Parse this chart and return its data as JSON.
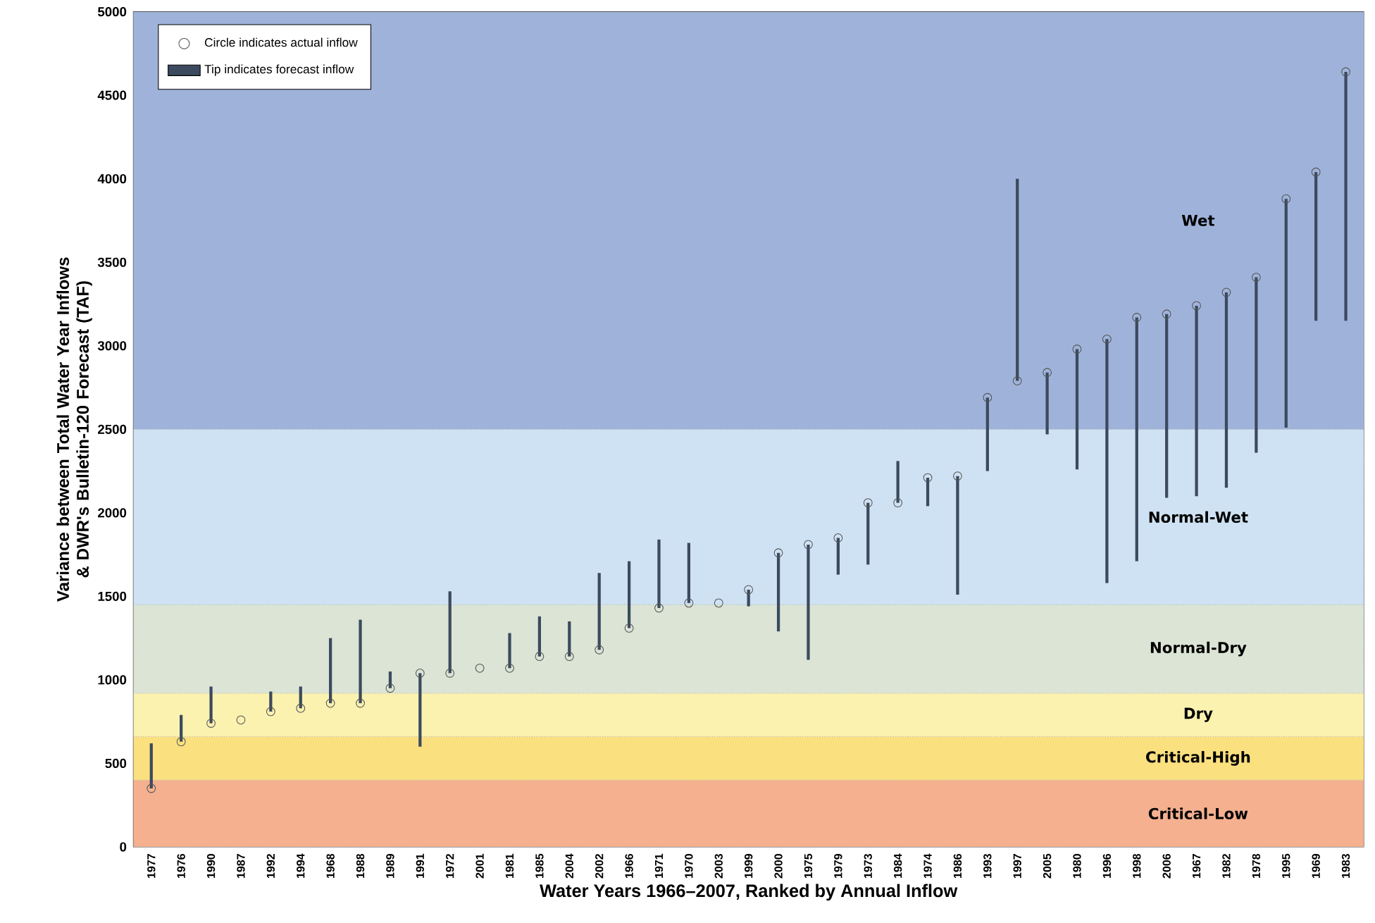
{
  "chart_data": {
    "type": "scatter",
    "xlabel": "Water Years 1966–2007, Ranked by Annual Inflow",
    "ylabel": "Variance between Total Water Year Inflows & DWR's Bulletin-120 Forecast (TAF)",
    "categories": [
      "1977",
      "1976",
      "1990",
      "1987",
      "1992",
      "1994",
      "1968",
      "1988",
      "1989",
      "1991",
      "1972",
      "2001",
      "1981",
      "1985",
      "2004",
      "2002",
      "1966",
      "1971",
      "1970",
      "2003",
      "1999",
      "2000",
      "1975",
      "1979",
      "1973",
      "1984",
      "1974",
      "1986",
      "1993",
      "1997",
      "2005",
      "1980",
      "1996",
      "1998",
      "2006",
      "1967",
      "1982",
      "1978",
      "1995",
      "1969",
      "1983"
    ],
    "series": [
      {
        "name": "Circle indicates actual inflow",
        "marker": "circle",
        "color": "#555555",
        "values": [
          350,
          630,
          740,
          760,
          810,
          830,
          860,
          860,
          950,
          1040,
          1040,
          1070,
          1070,
          1140,
          1140,
          1180,
          1310,
          1430,
          1460,
          1460,
          1540,
          1760,
          1810,
          1850,
          2060,
          2060,
          2210,
          2220,
          2690,
          2790,
          2840,
          2980,
          3040,
          3170,
          3190,
          3240,
          3320,
          3410,
          3880,
          4040,
          4640
        ]
      },
      {
        "name": "Tip indicates forecast inflow",
        "type": "bar",
        "color": "#3b4a5e",
        "base": [
          350,
          630,
          740,
          null,
          810,
          830,
          860,
          860,
          950,
          1040,
          1040,
          null,
          1070,
          1140,
          1140,
          1180,
          1310,
          1430,
          1460,
          null,
          1540,
          1760,
          1810,
          1850,
          2060,
          2060,
          2210,
          2220,
          2690,
          2790,
          2840,
          2980,
          3040,
          3170,
          3190,
          3240,
          3320,
          3410,
          3880,
          4040,
          4640
        ],
        "values": [
          270,
          160,
          220,
          null,
          120,
          130,
          390,
          500,
          100,
          -440,
          490,
          null,
          210,
          240,
          210,
          460,
          400,
          410,
          360,
          null,
          -100,
          -470,
          -690,
          -220,
          -370,
          250,
          -170,
          -710,
          -440,
          1210,
          -370,
          -720,
          -1460,
          -1460,
          -1100,
          -1140,
          -1170,
          -1050,
          -1370,
          -890,
          -1490
        ]
      }
    ],
    "ylim": [
      0,
      5000
    ],
    "yticks": [
      0,
      500,
      1000,
      1500,
      2000,
      2500,
      3000,
      3500,
      4000,
      4500,
      5000
    ],
    "bands": [
      {
        "axis": "y",
        "from": 0,
        "to": 400,
        "label": "Critical-Low",
        "color": "#f4b08f"
      },
      {
        "axis": "y",
        "from": 400,
        "to": 660,
        "label": "Critical-High",
        "color": "#fbe07f"
      },
      {
        "axis": "y",
        "from": 660,
        "to": 920,
        "label": "Dry",
        "color": "#fbf2b0"
      },
      {
        "axis": "y",
        "from": 920,
        "to": 1450,
        "label": "Normal-Dry",
        "color": "#dbe4d5"
      },
      {
        "axis": "y",
        "from": 1450,
        "to": 2500,
        "label": "Normal-Wet",
        "color": "#cfe2f3"
      },
      {
        "axis": "y",
        "from": 2500,
        "to": 5000,
        "label": "Wet",
        "color": "#9fb3da"
      }
    ],
    "legend": "top left",
    "grid": false
  }
}
